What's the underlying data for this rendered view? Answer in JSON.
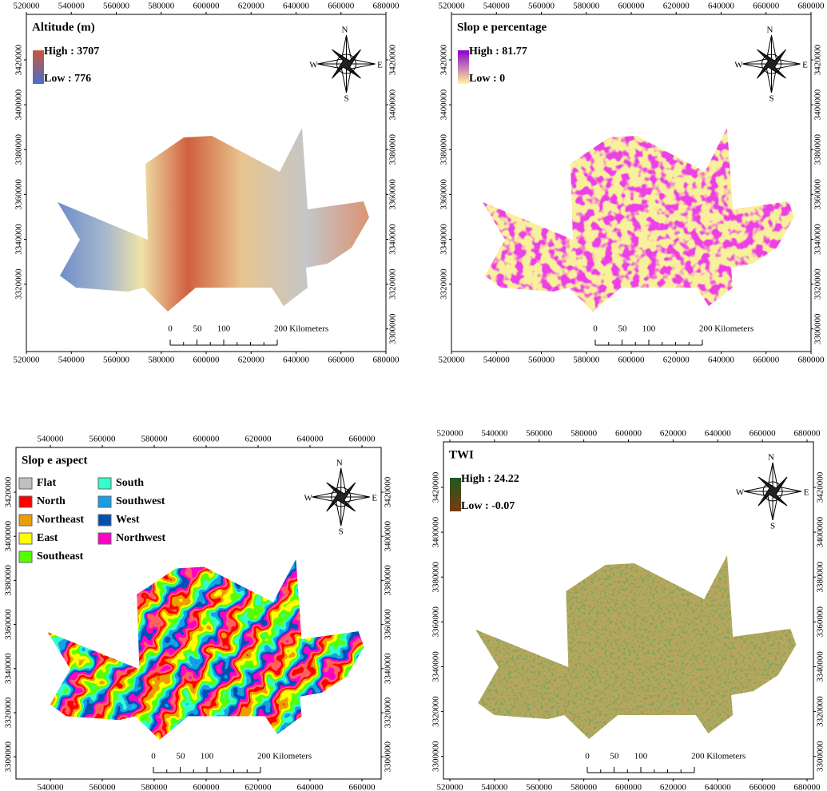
{
  "panels": [
    {
      "title": "Altitude (m)",
      "legend": [
        {
          "label": "High : 3707",
          "color": "#c8553d"
        },
        {
          "label": "Low : 776",
          "color": "#4a6fc7"
        }
      ],
      "x_ticks_top": [
        "520000",
        "540000",
        "560000",
        "580000",
        "600000",
        "620000",
        "640000",
        "660000",
        "680000"
      ],
      "x_ticks_bottom": [
        "520000",
        "540000",
        "560000",
        "580000",
        "600000",
        "620000",
        "640000",
        "660000",
        "680000"
      ],
      "y_ticks_left": [
        "3420000",
        "3400000",
        "3380000",
        "3360000",
        "3340000",
        "3320000"
      ],
      "y_ticks_right": [
        "3420000",
        "3400000",
        "3380000",
        "3360000",
        "3340000",
        "3320000",
        "3300000"
      ],
      "compass": {
        "n": "N",
        "s": "S",
        "w": "W",
        "e": "E"
      },
      "scale_bar": [
        "0",
        "50",
        "100",
        "200 Kilometers"
      ]
    },
    {
      "title": "Slop e percentage",
      "legend": [
        {
          "label": "High : 81.77",
          "color": "#8a00d0"
        },
        {
          "label": "Low : 0",
          "color": "#fff59a"
        }
      ],
      "x_ticks_top": [
        "520000",
        "540000",
        "560000",
        "580000",
        "600000",
        "620000",
        "640000",
        "660000",
        "680000"
      ],
      "x_ticks_bottom": [
        "520000",
        "540000",
        "560000",
        "580000",
        "600000",
        "620000",
        "640000",
        "660000",
        "680000"
      ],
      "y_ticks_left": [
        "3420000",
        "3400000",
        "3380000",
        "3360000",
        "3340000",
        "3320000"
      ],
      "y_ticks_right": [
        "3420000",
        "3400000",
        "3380000",
        "3360000",
        "3340000",
        "3320000",
        "3300000"
      ],
      "compass": {
        "n": "N",
        "s": "S",
        "w": "W",
        "e": "E"
      },
      "scale_bar": [
        "0",
        "50",
        "100",
        "200 Kilometers"
      ]
    },
    {
      "title": "Slop e aspect",
      "legend": [
        {
          "label": "Flat",
          "color": "#c0c0c0"
        },
        {
          "label": "North",
          "color": "#ff0000"
        },
        {
          "label": "Northeast",
          "color": "#e8a000"
        },
        {
          "label": "East",
          "color": "#ffff00"
        },
        {
          "label": "Southeast",
          "color": "#55ff00"
        },
        {
          "label": "South",
          "color": "#33ffcc"
        },
        {
          "label": "Southwest",
          "color": "#14a0e6"
        },
        {
          "label": "West",
          "color": "#0050b4"
        },
        {
          "label": "Northwest",
          "color": "#ff00c8"
        }
      ],
      "x_ticks_top": [
        "540000",
        "560000",
        "580000",
        "600000",
        "620000",
        "640000",
        "660000"
      ],
      "x_ticks_bottom": [
        "540000",
        "560000",
        "580000",
        "600000",
        "620000",
        "640000",
        "660000"
      ],
      "y_ticks_left": [
        "3420000",
        "3400000",
        "3380000",
        "3360000",
        "3340000",
        "3320000",
        "3300000"
      ],
      "y_ticks_right": [
        "3420000",
        "3400000",
        "3380000",
        "3360000",
        "3340000",
        "3320000",
        "3300000"
      ],
      "compass": {
        "n": "N",
        "s": "S",
        "w": "W",
        "e": "E"
      },
      "scale_bar": [
        "0",
        "50",
        "100",
        "200 Kilometers"
      ]
    },
    {
      "title": "TWI",
      "legend": [
        {
          "label": "High : 24.22",
          "color": "#1e5a1e"
        },
        {
          "label": "Low : -0.07",
          "color": "#7a3a12"
        }
      ],
      "x_ticks_top": [
        "520000",
        "540000",
        "560000",
        "580000",
        "600000",
        "620000",
        "640000",
        "660000",
        "680000"
      ],
      "x_ticks_bottom": [
        "520000",
        "540000",
        "560000",
        "580000",
        "600000",
        "620000",
        "640000",
        "660000",
        "680000"
      ],
      "y_ticks_left": [
        "3420000",
        "3400000",
        "3380000",
        "3360000",
        "3340000",
        "3320000",
        "3300000"
      ],
      "y_ticks_right": [
        "3420000",
        "3400000",
        "3380000",
        "3360000",
        "3340000",
        "3320000",
        "3300000"
      ],
      "compass": {
        "n": "N",
        "s": "S",
        "w": "W",
        "e": "E"
      },
      "scale_bar": [
        "0",
        "50",
        "100",
        "200 Kilometers"
      ]
    }
  ]
}
